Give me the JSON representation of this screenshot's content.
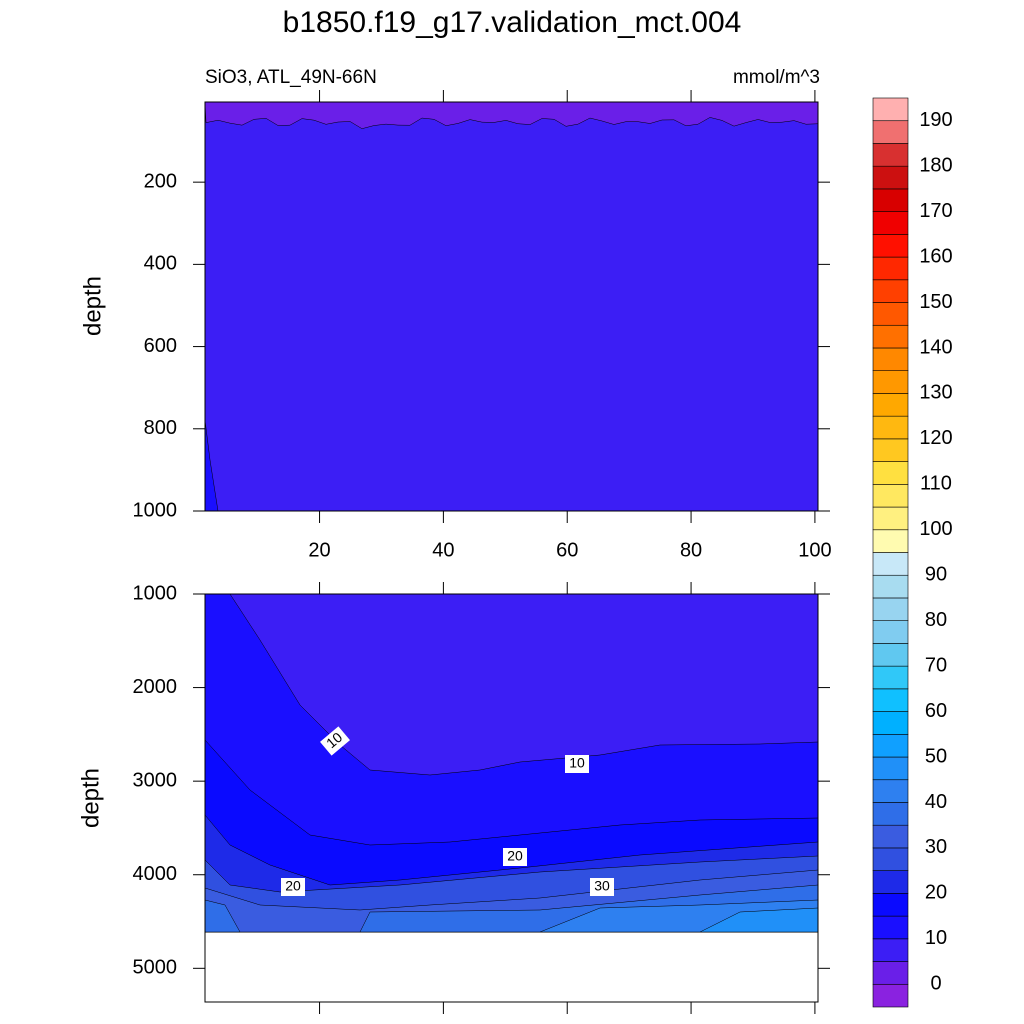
{
  "chart_data": [
    {
      "type": "contour",
      "title": "b1850.f19_g17.validation_mct.004",
      "subtitle_left": "SiO3, ATL_49N-66N",
      "subtitle_right": "mmol/m^3",
      "ylabel": "depth",
      "xlim": [
        1.5,
        100.5
      ],
      "ylim": [
        5,
        1000
      ],
      "y_reversed": true,
      "xticks": [
        20,
        40,
        60,
        80,
        100
      ],
      "yticks": [
        200,
        400,
        600,
        800,
        1000
      ],
      "colorbar": {
        "levels": [
          0,
          5,
          10,
          15,
          20,
          25,
          30,
          35,
          40,
          45,
          50,
          55,
          60,
          65,
          70,
          75,
          80,
          85,
          90,
          95,
          100,
          105,
          110,
          115,
          120,
          125,
          130,
          135,
          140,
          145,
          150,
          155,
          160,
          165,
          170,
          175,
          180,
          185,
          190
        ],
        "ticks": [
          0,
          10,
          20,
          30,
          40,
          50,
          60,
          70,
          80,
          90,
          100,
          110,
          120,
          130,
          140,
          150,
          160,
          170,
          180,
          190
        ],
        "colors": [
          "#8a22e0",
          "#6a1fe8",
          "#3c1ef5",
          "#1a0fff",
          "#0a0aff",
          "#1e2ae8",
          "#3050e0",
          "#3a5ce0",
          "#2f6ee8",
          "#2e80f0",
          "#2090f8",
          "#10a0ff",
          "#00b0ff",
          "#10c0ff",
          "#30c8f8",
          "#60c8f0",
          "#80ccf0",
          "#98d4f0",
          "#a8dcf0",
          "#c8e8f8",
          "#fffbb0",
          "#fff080",
          "#ffe860",
          "#ffe040",
          "#ffc820",
          "#ffb810",
          "#ffa800",
          "#ff9800",
          "#ff8800",
          "#ff7000",
          "#ff5800",
          "#ff4000",
          "#ff2800",
          "#ff1000",
          "#f00000",
          "#d80000",
          "#cc1010",
          "#d83030",
          "#f07070",
          "#ffb0b0"
        ]
      }
    },
    {
      "type": "contour",
      "ylabel": "depth",
      "xlim": [
        1.5,
        100.5
      ],
      "ylim": [
        1000,
        5360
      ],
      "y_reversed": true,
      "yticks": [
        1000,
        2000,
        3000,
        4000,
        5000
      ],
      "contour_labels": [
        "10",
        "10",
        "20",
        "20",
        "30"
      ]
    }
  ]
}
